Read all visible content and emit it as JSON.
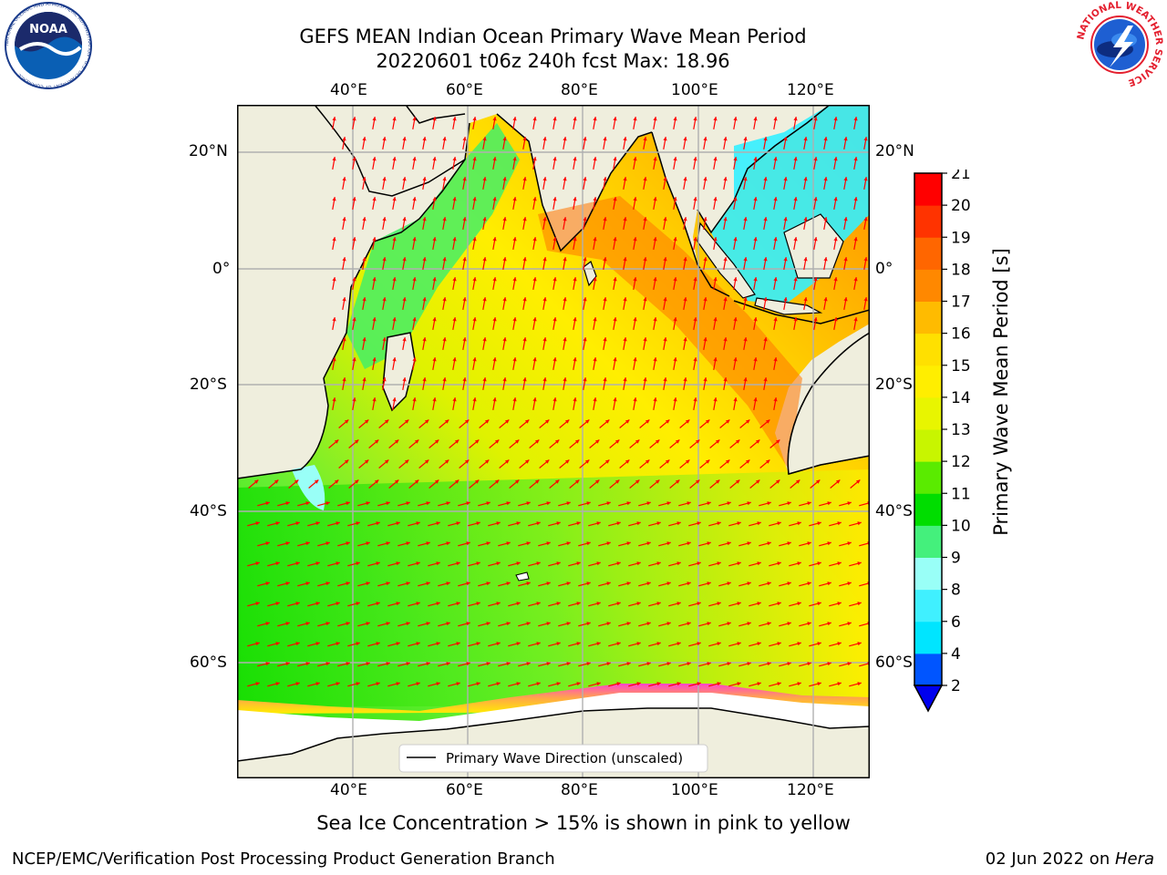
{
  "title": {
    "line1": "GEFS MEAN Indian Ocean Primary Wave Mean Period",
    "line2": "20220601 t06z 240h fcst   Max: 18.96"
  },
  "axes": {
    "lon_ticks": [
      "40°E",
      "60°E",
      "80°E",
      "100°E",
      "120°E"
    ],
    "lat_ticks": [
      "20°N",
      "0°",
      "20°S",
      "40°S",
      "60°S"
    ]
  },
  "legend": {
    "label": "Primary Wave Direction (unscaled)"
  },
  "colorbar": {
    "label": "Primary Wave Mean Period [s]",
    "ticks": [
      "2",
      "4",
      "6",
      "8",
      "9",
      "10",
      "11",
      "12",
      "13",
      "14",
      "15",
      "16",
      "17",
      "18",
      "19",
      "20",
      "21"
    ],
    "colors": [
      "#0055ff",
      "#00e5ff",
      "#40f0ff",
      "#99fff7",
      "#44f07c",
      "#00dd00",
      "#5aeb00",
      "#c8f500",
      "#e8f500",
      "#ffee00",
      "#ffe000",
      "#ffbb00",
      "#ff8800",
      "#ff6600",
      "#ff3300",
      "#ff0000"
    ],
    "under_color": "#0000ee"
  },
  "note": "Sea Ice Concentration > 15% is shown in pink to yellow",
  "footer": {
    "left": "NCEP/EMC/Verification Post Processing Product Generation Branch",
    "date": "02 Jun 2022 on ",
    "machine": "Hera"
  },
  "logos": {
    "noaa": {
      "text": "NOAA",
      "ring": "NATIONAL OCEANIC AND ATMOSPHERIC ADMINISTRATION · U.S. DEPARTMENT OF COMMERCE"
    },
    "nws": {
      "ring": "NATIONAL WEATHER SERVICE"
    }
  },
  "colors": {
    "arrow": "#ff0000",
    "land": "#efeedd",
    "ice_free": "#ffffff",
    "grid": "#b0b0b0"
  }
}
